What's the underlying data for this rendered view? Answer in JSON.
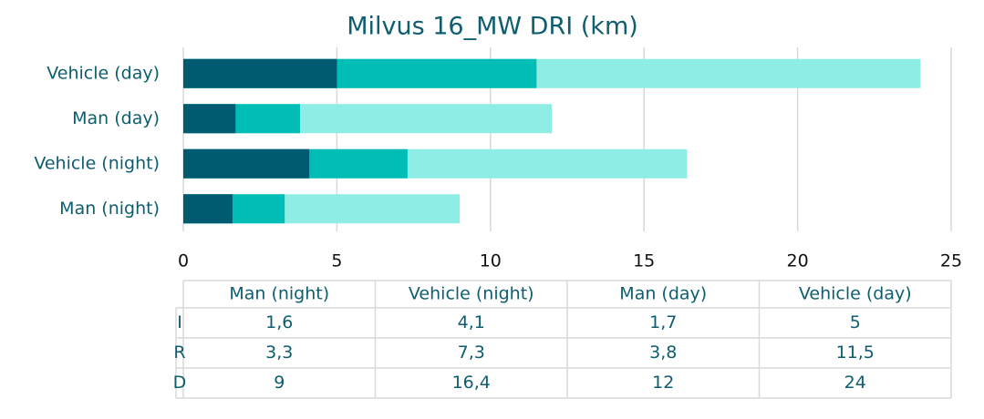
{
  "chart_data": {
    "type": "bar",
    "orientation": "horizontal",
    "title": "Milvus 16_MW DRI (km)",
    "categories": [
      "Man (night)",
      "Vehicle (night)",
      "Man (day)",
      "Vehicle (day)"
    ],
    "series": [
      {
        "name": "I",
        "color": "#005a70",
        "values": [
          1.6,
          4.1,
          1.7,
          5
        ],
        "value_labels": [
          "1,6",
          "4,1",
          "1,7",
          "5"
        ]
      },
      {
        "name": "R",
        "color": "#00bdb5",
        "values": [
          3.3,
          7.3,
          3.8,
          11.5
        ],
        "value_labels": [
          "3,3",
          "7,3",
          "3,8",
          "11,5"
        ]
      },
      {
        "name": "D",
        "color": "#8eede4",
        "values": [
          9,
          16.4,
          12,
          24
        ],
        "value_labels": [
          "9",
          "16,4",
          "12",
          "24"
        ]
      }
    ],
    "xlim": [
      0,
      25
    ],
    "xticks": [
      0,
      5,
      10,
      15,
      20,
      25
    ],
    "grid": true
  }
}
